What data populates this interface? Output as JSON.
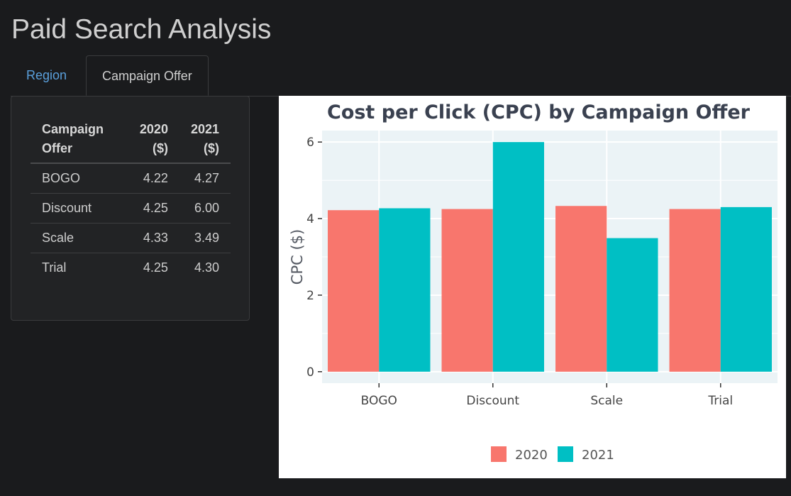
{
  "app": {
    "title": "Paid Search Analysis"
  },
  "tabs": [
    {
      "label": "Region",
      "active": false
    },
    {
      "label": "Campaign Offer",
      "active": true
    }
  ],
  "table": {
    "headers": [
      "Campaign Offer",
      "2020 ($)",
      "2021 ($)"
    ],
    "rows": [
      [
        "BOGO",
        "4.22",
        "4.27"
      ],
      [
        "Discount",
        "4.25",
        "6.00"
      ],
      [
        "Scale",
        "4.33",
        "3.49"
      ],
      [
        "Trial",
        "4.25",
        "4.30"
      ]
    ]
  },
  "chart_data": {
    "type": "bar",
    "title": "Cost per Click (CPC) by Campaign Offer",
    "xlabel": "",
    "ylabel": "CPC ($)",
    "categories": [
      "BOGO",
      "Discount",
      "Scale",
      "Trial"
    ],
    "series": [
      {
        "name": "2020",
        "values": [
          4.22,
          4.25,
          4.33,
          4.25
        ],
        "color": "#f8766d"
      },
      {
        "name": "2021",
        "values": [
          4.27,
          6.0,
          3.49,
          4.3
        ],
        "color": "#00bfc4"
      }
    ],
    "yticks": [
      0,
      2,
      4,
      6
    ],
    "ylim": [
      -0.3,
      6.3
    ],
    "grid": true,
    "legend": "bottom",
    "colors": {
      "panel_bg": "#ebf3f6",
      "grid": "#ffffff",
      "text": "#3a4150"
    }
  }
}
